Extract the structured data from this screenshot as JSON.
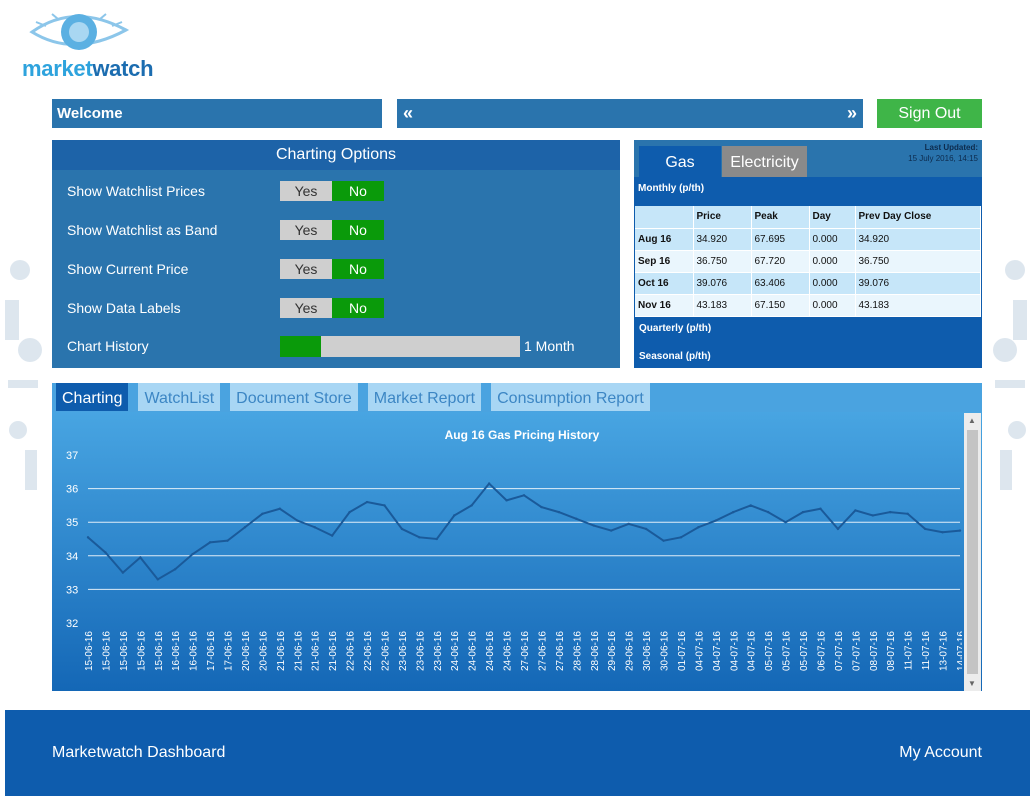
{
  "logo": {
    "text_a": "market",
    "text_b": "watch"
  },
  "header": {
    "welcome": "Welcome",
    "prev": "«",
    "next": "»",
    "signout": "Sign Out"
  },
  "options": {
    "title": "Charting Options",
    "rows": [
      {
        "label": "Show Watchlist Prices",
        "yes": "Yes",
        "no": "No",
        "selected": "No"
      },
      {
        "label": "Show Watchlist as Band",
        "yes": "Yes",
        "no": "No",
        "selected": "No"
      },
      {
        "label": "Show Current Price",
        "yes": "Yes",
        "no": "No",
        "selected": "No"
      },
      {
        "label": "Show Data Labels",
        "yes": "Yes",
        "no": "No",
        "selected": "No"
      }
    ],
    "history_label": "Chart History",
    "history_value": "1 Month",
    "history_fraction": 0.17
  },
  "prices": {
    "tab_gas": "Gas",
    "tab_elec": "Electricity",
    "last_updated_label": "Last Updated:",
    "last_updated": "15 July 2016, 14:15",
    "monthly": "Monthly (p/th)",
    "columns": [
      "",
      "Price",
      "Peak",
      "Day",
      "Prev Day Close"
    ],
    "rows": [
      [
        "Aug 16",
        "34.920",
        "67.695",
        "0.000",
        "34.920"
      ],
      [
        "Sep 16",
        "36.750",
        "67.720",
        "0.000",
        "36.750"
      ],
      [
        "Oct 16",
        "39.076",
        "63.406",
        "0.000",
        "39.076"
      ],
      [
        "Nov 16",
        "43.183",
        "67.150",
        "0.000",
        "43.183"
      ]
    ],
    "quarterly": "Quarterly (p/th)",
    "seasonal": "Seasonal (p/th)"
  },
  "chart_tabs": [
    "Charting",
    "WatchList",
    "Document Store",
    "Market Report",
    "Consumption Report"
  ],
  "chart_data": {
    "type": "line",
    "title": "Aug 16 Gas Pricing History",
    "ylim": [
      32,
      37
    ],
    "yticks": [
      32,
      33,
      34,
      35,
      36,
      37
    ],
    "grid": true,
    "line_color": "#1a5a9a",
    "x": [
      "15-06-16",
      "15-06-16",
      "15-06-16",
      "15-06-16",
      "15-06-16",
      "16-06-16",
      "16-06-16",
      "17-06-16",
      "17-06-16",
      "20-06-16",
      "20-06-16",
      "21-06-16",
      "21-06-16",
      "21-06-16",
      "21-06-16",
      "22-06-16",
      "22-06-16",
      "22-06-16",
      "23-06-16",
      "23-06-16",
      "23-06-16",
      "24-06-16",
      "24-06-16",
      "24-06-16",
      "24-06-16",
      "27-06-16",
      "27-06-16",
      "27-06-16",
      "28-06-16",
      "28-06-16",
      "29-06-16",
      "29-06-16",
      "30-06-16",
      "30-06-16",
      "01-07-16",
      "04-07-16",
      "04-07-16",
      "04-07-16",
      "04-07-16",
      "05-07-16",
      "05-07-16",
      "05-07-16",
      "06-07-16",
      "07-07-16",
      "07-07-16",
      "08-07-16",
      "08-07-16",
      "11-07-16",
      "11-07-16",
      "13-07-16",
      "14-07-16"
    ],
    "values": [
      34.55,
      34.1,
      33.5,
      33.95,
      33.3,
      33.6,
      34.05,
      34.4,
      34.45,
      34.85,
      35.25,
      35.4,
      35.05,
      34.85,
      34.6,
      35.3,
      35.6,
      35.5,
      34.8,
      34.55,
      34.5,
      35.2,
      35.5,
      36.15,
      35.65,
      35.8,
      35.45,
      35.3,
      35.1,
      34.9,
      34.75,
      34.95,
      34.8,
      34.45,
      34.55,
      34.85,
      35.05,
      35.3,
      35.5,
      35.3,
      35.0,
      35.3,
      35.4,
      34.8,
      35.35,
      35.2,
      35.3,
      35.25,
      34.8,
      34.7,
      34.75
    ]
  },
  "footer": {
    "left": "Marketwatch Dashboard",
    "right": "My Account"
  }
}
